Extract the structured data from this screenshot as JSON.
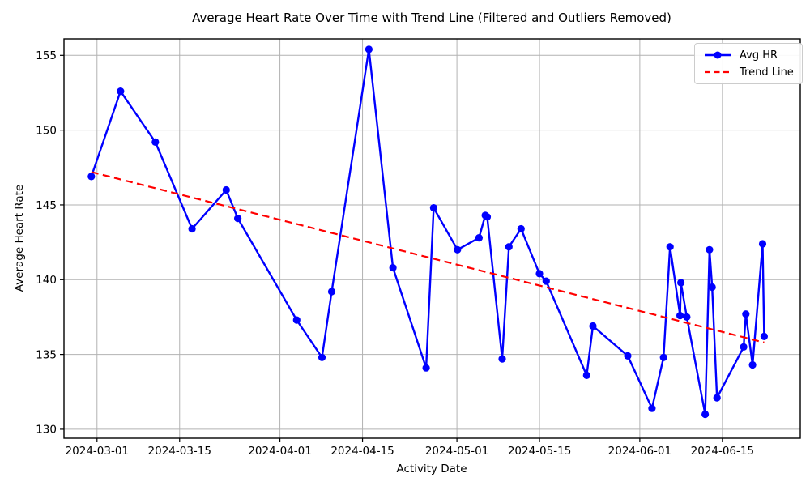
{
  "chart_data": {
    "type": "line",
    "title": "Average Heart Rate Over Time with Trend Line (Filtered and Outliers Removed)",
    "xlabel": "Activity Date",
    "ylabel": "Average Heart Rate",
    "grid": true,
    "legend_position": "upper right",
    "legend": [
      {
        "label": "Avg HR",
        "style": "solid-with-circle-marker"
      },
      {
        "label": "Trend Line",
        "style": "dashed"
      }
    ],
    "colors": {
      "series": "#0000ff",
      "trend": "#ff0000",
      "grid": "#b2b2b2",
      "spine": "#000000",
      "background": "#ffffff",
      "text": "#000000"
    },
    "x_axis": {
      "label": "Activity Date",
      "lim_days": [
        -5.6,
        119.2
      ],
      "ticks": [
        {
          "label": "2024-03-01",
          "day": 0
        },
        {
          "label": "2024-03-15",
          "day": 14
        },
        {
          "label": "2024-04-01",
          "day": 31
        },
        {
          "label": "2024-04-15",
          "day": 45
        },
        {
          "label": "2024-05-01",
          "day": 61
        },
        {
          "label": "2024-05-15",
          "day": 75
        },
        {
          "label": "2024-06-01",
          "day": 92
        },
        {
          "label": "2024-06-15",
          "day": 106
        }
      ]
    },
    "y_axis": {
      "label": "Average Heart Rate",
      "lim": [
        129.4,
        156.1
      ],
      "ticks": [
        130,
        135,
        140,
        145,
        150,
        155
      ]
    },
    "series": [
      {
        "name": "Avg HR",
        "points": [
          {
            "date": "2024-02-29",
            "day": -0.96,
            "value": 146.9
          },
          {
            "date": "2024-03-05",
            "day": 3.98,
            "value": 152.6
          },
          {
            "date": "2024-03-11",
            "day": 9.88,
            "value": 149.2
          },
          {
            "date": "2024-03-17",
            "day": 16.1,
            "value": 143.4
          },
          {
            "date": "2024-03-23",
            "day": 21.9,
            "value": 146.0
          },
          {
            "date": "2024-03-25",
            "day": 23.87,
            "value": 144.1
          },
          {
            "date": "2024-04-04",
            "day": 33.84,
            "value": 137.3
          },
          {
            "date": "2024-04-08",
            "day": 38.13,
            "value": 134.8
          },
          {
            "date": "2024-04-10",
            "day": 39.78,
            "value": 139.2
          },
          {
            "date": "2024-04-16",
            "day": 46.08,
            "value": 155.4
          },
          {
            "date": "2024-04-20",
            "day": 50.16,
            "value": 140.8
          },
          {
            "date": "2024-04-26",
            "day": 55.78,
            "value": 134.1
          },
          {
            "date": "2024-04-27",
            "day": 57.06,
            "value": 144.8
          },
          {
            "date": "2024-05-01",
            "day": 61.1,
            "value": 142.0
          },
          {
            "date": "2024-05-05",
            "day": 64.75,
            "value": 142.8
          },
          {
            "date": "2024-05-06",
            "day": 65.8,
            "value": 144.3
          },
          {
            "date": "2024-05-06",
            "day": 66.14,
            "value": 144.2
          },
          {
            "date": "2024-05-09",
            "day": 68.68,
            "value": 134.7
          },
          {
            "date": "2024-05-10",
            "day": 69.82,
            "value": 142.2
          },
          {
            "date": "2024-05-12",
            "day": 71.88,
            "value": 143.4
          },
          {
            "date": "2024-05-15",
            "day": 74.99,
            "value": 140.4
          },
          {
            "date": "2024-05-16",
            "day": 76.13,
            "value": 139.9
          },
          {
            "date": "2024-05-23",
            "day": 82.99,
            "value": 133.6
          },
          {
            "date": "2024-05-24",
            "day": 84.05,
            "value": 136.9
          },
          {
            "date": "2024-05-30",
            "day": 89.95,
            "value": 134.9
          },
          {
            "date": "2024-06-03",
            "day": 94.06,
            "value": 131.4
          },
          {
            "date": "2024-06-05",
            "day": 96.02,
            "value": 134.8
          },
          {
            "date": "2024-06-06",
            "day": 97.12,
            "value": 142.2
          },
          {
            "date": "2024-06-08",
            "day": 98.82,
            "value": 137.6
          },
          {
            "date": "2024-06-08",
            "day": 98.96,
            "value": 139.8
          },
          {
            "date": "2024-06-09",
            "day": 99.97,
            "value": 137.5
          },
          {
            "date": "2024-06-12",
            "day": 103.08,
            "value": 131.0
          },
          {
            "date": "2024-06-13",
            "day": 103.81,
            "value": 142.0
          },
          {
            "date": "2024-06-13",
            "day": 104.26,
            "value": 139.5
          },
          {
            "date": "2024-06-14",
            "day": 105.08,
            "value": 132.1
          },
          {
            "date": "2024-06-19",
            "day": 109.6,
            "value": 135.5
          },
          {
            "date": "2024-06-19",
            "day": 109.97,
            "value": 137.7
          },
          {
            "date": "2024-06-20",
            "day": 111.11,
            "value": 134.3
          },
          {
            "date": "2024-06-22",
            "day": 112.81,
            "value": 142.4
          },
          {
            "date": "2024-06-22",
            "day": 113.08,
            "value": 136.2
          }
        ]
      }
    ],
    "trend": {
      "name": "Trend Line",
      "start": {
        "day": -0.96,
        "value": 147.2
      },
      "end": {
        "day": 113.08,
        "value": 135.8
      }
    }
  }
}
